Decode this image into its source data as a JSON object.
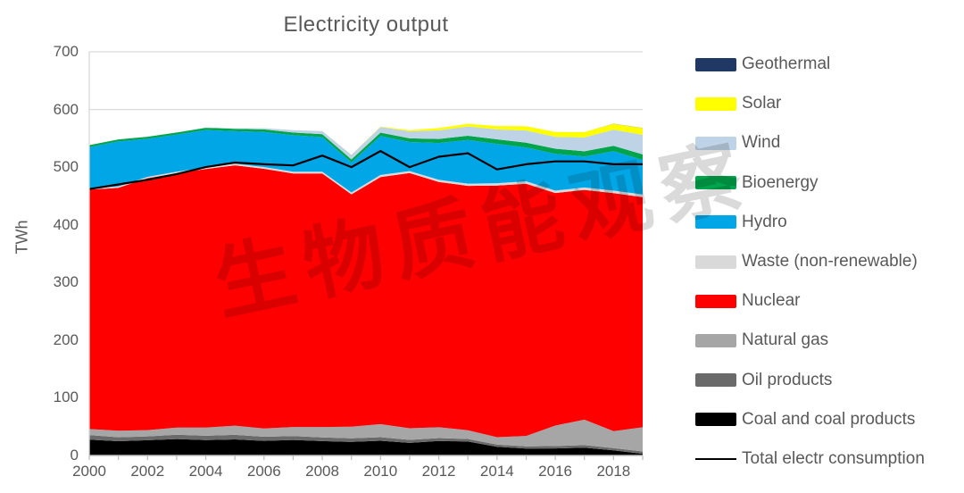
{
  "watermark": {
    "text": "生物质能观察",
    "color": "#000000",
    "opacity": 0.14
  },
  "axis_colors": {
    "gridline": "#D9D9D9",
    "axis_line": "#BFBFBF",
    "tick_text": "#595959"
  },
  "legend": {
    "items": [
      {
        "label": "Geothermal",
        "swatch": "rect",
        "color": "#1F3864"
      },
      {
        "label": "Solar",
        "swatch": "rect",
        "color": "#FFFF00"
      },
      {
        "label": "Wind",
        "swatch": "rect",
        "color": "#BFD3E6"
      },
      {
        "label": "Bioenergy",
        "swatch": "rect",
        "color": "#00A44A"
      },
      {
        "label": "Hydro",
        "swatch": "rect",
        "color": "#00A6E6"
      },
      {
        "label": "Waste (non-renewable)",
        "swatch": "rect",
        "color": "#D9D9D9"
      },
      {
        "label": "Nuclear",
        "swatch": "rect",
        "color": "#FF0000"
      },
      {
        "label": "Natural gas",
        "swatch": "rect",
        "color": "#A6A6A6"
      },
      {
        "label": "Oil products",
        "swatch": "rect",
        "color": "#6A6A6A"
      },
      {
        "label": "Coal and coal products",
        "swatch": "rect",
        "color": "#000000"
      },
      {
        "label": "Total electr consumption",
        "swatch": "line",
        "color": "#000000"
      }
    ]
  },
  "chart_data": {
    "type": "area",
    "stacked": true,
    "title": "Electricity output",
    "xlabel": "",
    "ylabel": "TWh",
    "ylim": [
      0,
      700
    ],
    "xlim": [
      2000,
      2019
    ],
    "yticks": [
      0,
      100,
      200,
      300,
      400,
      500,
      600,
      700
    ],
    "xticks": [
      2000,
      2002,
      2004,
      2006,
      2008,
      2010,
      2012,
      2014,
      2016,
      2018
    ],
    "grid": "horizontal",
    "legend_position": "right",
    "years": [
      2000,
      2001,
      2002,
      2003,
      2004,
      2005,
      2006,
      2007,
      2008,
      2009,
      2010,
      2011,
      2012,
      2013,
      2014,
      2015,
      2016,
      2017,
      2018,
      2019
    ],
    "series": [
      {
        "name": "Coal and coal products",
        "color": "#000000",
        "values": [
          27.6,
          24.8,
          26.5,
          28.5,
          26.7,
          27.9,
          25.4,
          27.0,
          25.0,
          23.5,
          25.5,
          21.8,
          25.2,
          24.2,
          15.1,
          12.1,
          12.2,
          13.5,
          9.0,
          3.0
        ]
      },
      {
        "name": "Oil products",
        "color": "#6A6A6A",
        "values": [
          7.9,
          6.8,
          6.6,
          7.4,
          7.5,
          7.9,
          7.1,
          6.6,
          6.5,
          6.2,
          6.3,
          5.3,
          5.0,
          4.5,
          4.0,
          3.9,
          4.2,
          4.5,
          3.8,
          4.0
        ]
      },
      {
        "name": "Natural gas",
        "color": "#A6A6A6",
        "values": [
          10.4,
          11.5,
          10.9,
          12.5,
          14.3,
          15.9,
          14.5,
          15.8,
          17.9,
          20.1,
          22.6,
          20.2,
          18.7,
          15.1,
          12.6,
          17.9,
          35.5,
          44.1,
          29.3,
          42.0
        ]
      },
      {
        "name": "Nuclear",
        "color": "#FF0000",
        "values": [
          415.2,
          421.1,
          436.8,
          441.1,
          448.2,
          451.5,
          450.2,
          439.7,
          439.5,
          403.0,
          428.5,
          442.4,
          425.4,
          423.7,
          436.5,
          437.4,
          403.2,
          398.4,
          412.9,
          399.0
        ]
      },
      {
        "name": "Waste (non-renewable)",
        "color": "#D9D9D9",
        "values": [
          2.1,
          2.3,
          2.4,
          2.5,
          2.7,
          2.9,
          3.0,
          3.1,
          3.2,
          3.3,
          3.5,
          3.6,
          3.8,
          3.9,
          4.0,
          4.1,
          4.2,
          4.3,
          4.4,
          4.5
        ]
      },
      {
        "name": "Hydro",
        "color": "#00A6E6",
        "values": [
          71.6,
          78.0,
          65.9,
          64.3,
          64.9,
          56.3,
          60.9,
          63.2,
          60.0,
          52.0,
          67.6,
          50.3,
          63.8,
          75.7,
          68.2,
          58.7,
          63.9,
          53.6,
          68.3,
          60.0
        ]
      },
      {
        "name": "Bioenergy",
        "color": "#00A44A",
        "values": [
          3.4,
          3.5,
          3.6,
          3.7,
          3.9,
          4.1,
          4.3,
          4.6,
          4.9,
          5.3,
          5.8,
          6.3,
          7.0,
          7.4,
          7.9,
          8.3,
          8.8,
          9.1,
          9.4,
          9.6
        ]
      },
      {
        "name": "Wind",
        "color": "#BFD3E6",
        "values": [
          0.1,
          0.1,
          0.3,
          0.4,
          0.6,
          1.0,
          2.2,
          4.1,
          5.7,
          7.9,
          9.9,
          12.1,
          14.9,
          16.0,
          17.1,
          21.1,
          20.7,
          24.0,
          27.9,
          34.1
        ]
      },
      {
        "name": "Solar",
        "color": "#FFFF00",
        "values": [
          0,
          0,
          0,
          0,
          0,
          0,
          0,
          0,
          0,
          0.2,
          0.6,
          2.1,
          4.0,
          4.7,
          5.9,
          7.4,
          8.2,
          9.2,
          10.2,
          11.6
        ]
      },
      {
        "name": "Geothermal",
        "color": "#1F3864",
        "values": [
          0,
          0,
          0,
          0,
          0,
          0,
          0,
          0,
          0,
          0,
          0,
          0,
          0,
          0,
          0,
          0,
          0,
          0.1,
          0.1,
          0.1
        ]
      }
    ],
    "line_series": {
      "name": "Total electr consumption",
      "color": "#000000",
      "values": [
        462,
        470,
        478,
        488,
        500,
        508,
        505,
        503,
        520,
        500,
        528,
        500,
        518,
        524,
        496,
        505,
        510,
        510,
        505,
        505
      ]
    }
  }
}
